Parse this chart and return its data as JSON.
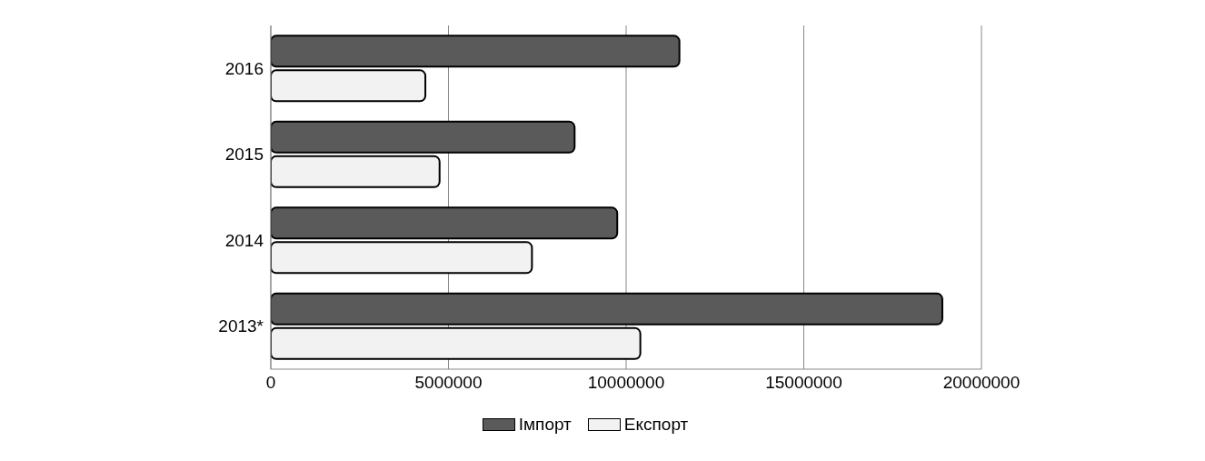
{
  "chart_data": {
    "type": "bar",
    "orientation": "horizontal",
    "categories": [
      "2016",
      "2015",
      "2014",
      "2013*"
    ],
    "series": [
      {
        "name": "Імпорт",
        "color": "#5a5a5a",
        "values": [
          11500000,
          8550000,
          9750000,
          18900000
        ]
      },
      {
        "name": "Експорт",
        "color": "#f2f2f2",
        "values": [
          4350000,
          4750000,
          7350000,
          10400000
        ]
      }
    ],
    "xlim": [
      0,
      20000000
    ],
    "xticks": [
      0,
      5000000,
      10000000,
      15000000,
      20000000
    ],
    "grid": "x",
    "legend": "bottom"
  }
}
